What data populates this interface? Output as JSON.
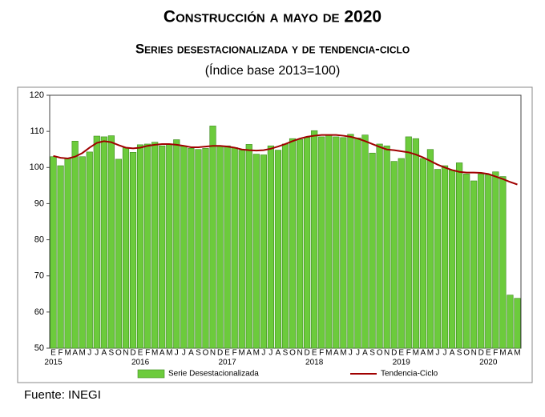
{
  "chart_data": {
    "type": "bar",
    "title": "Construcción a mayo de 2020",
    "subtitle": "Series desestacionalizada y de tendencia-ciclo",
    "unit_note": "(Índice base 2013=100)",
    "source": "Fuente: INEGI",
    "categories": [
      "E",
      "F",
      "M",
      "A",
      "M",
      "J",
      "J",
      "A",
      "S",
      "O",
      "N",
      "D",
      "E",
      "F",
      "M",
      "A",
      "M",
      "J",
      "J",
      "A",
      "S",
      "O",
      "N",
      "D",
      "E",
      "F",
      "M",
      "A",
      "M",
      "J",
      "J",
      "A",
      "S",
      "O",
      "N",
      "D",
      "E",
      "F",
      "M",
      "A",
      "M",
      "J",
      "J",
      "A",
      "S",
      "O",
      "N",
      "D",
      "E",
      "F",
      "M",
      "A",
      "M",
      "J",
      "J",
      "A",
      "S",
      "O",
      "N",
      "D",
      "E",
      "F",
      "M",
      "A",
      "M"
    ],
    "years": [
      "2015",
      "2016",
      "2017",
      "2018",
      "2019",
      "2020"
    ],
    "series": [
      {
        "name": "Serie Desestacionalizada",
        "type": "bar",
        "color": "#6ccb3c",
        "values": [
          103,
          100.5,
          102.5,
          107.3,
          103,
          104.3,
          108.7,
          108.5,
          108.8,
          102.3,
          105.5,
          104.2,
          106.3,
          106.5,
          107,
          106,
          106.5,
          107.7,
          106,
          105.3,
          105,
          105.3,
          111.5,
          106,
          106,
          105.5,
          104.8,
          106.4,
          103.7,
          103.5,
          106,
          104.8,
          106.5,
          108,
          107.8,
          108.3,
          110.2,
          108.5,
          109,
          108.5,
          108.3,
          109.2,
          108.2,
          109,
          104,
          106.5,
          106,
          101.7,
          102.5,
          108.5,
          108,
          102.5,
          105,
          99.5,
          100.5,
          99.3,
          101.3,
          98.2,
          96.3,
          98.2,
          98,
          98.8,
          97.5,
          64.7,
          63.8
        ]
      },
      {
        "name": "Tendencia-Ciclo",
        "type": "line",
        "color": "#a00000",
        "values": [
          103.2,
          102.7,
          102.5,
          103,
          104,
          105.5,
          106.8,
          107.3,
          107,
          106.2,
          105.5,
          105.3,
          105.5,
          106,
          106.3,
          106.5,
          106.5,
          106.3,
          106,
          105.6,
          105.6,
          105.8,
          106,
          106,
          105.8,
          105.5,
          105,
          104.8,
          104.7,
          104.8,
          105.2,
          105.8,
          106.5,
          107.3,
          108,
          108.5,
          108.8,
          109,
          109,
          109,
          108.8,
          108.5,
          108,
          107.3,
          106.5,
          105.7,
          105,
          104.8,
          104.5,
          104.2,
          103.6,
          102.8,
          101.8,
          100.8,
          100,
          99.3,
          98.8,
          98.6,
          98.6,
          98.5,
          98.2,
          97.5,
          96.8,
          96,
          95.3
        ]
      }
    ],
    "ylim": [
      50,
      120
    ],
    "yticks": [
      50,
      60,
      70,
      80,
      90,
      100,
      110,
      120
    ],
    "grid": false
  }
}
